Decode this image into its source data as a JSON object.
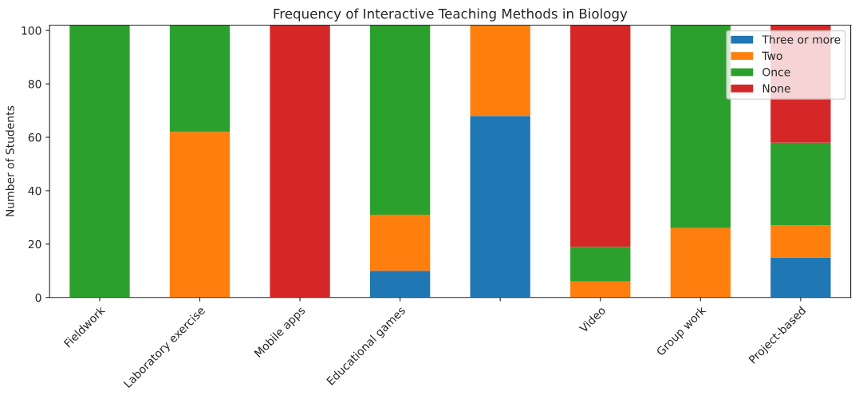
{
  "chart_data": {
    "type": "bar",
    "stacked": true,
    "title": "Frequency of Interactive Teaching Methods in Biology",
    "ylabel": "Number of Students",
    "categories": [
      "Fieldwork",
      "Laboratory exercise",
      "Mobile apps",
      "Educational games",
      null,
      "Video",
      "Group work",
      "Project-based"
    ],
    "series": [
      {
        "name": "Three or more",
        "color": "#1f77b4",
        "values": [
          0,
          0,
          0,
          10,
          68,
          0,
          0,
          15
        ]
      },
      {
        "name": "Two",
        "color": "#ff7f0e",
        "values": [
          0,
          62,
          0,
          21,
          34,
          6,
          26,
          12
        ]
      },
      {
        "name": "Once",
        "color": "#2ca02c",
        "values": [
          102,
          40,
          0,
          71,
          0,
          13,
          76,
          31
        ]
      },
      {
        "name": "None",
        "color": "#d62728",
        "values": [
          0,
          0,
          102,
          0,
          0,
          83,
          0,
          44
        ]
      }
    ],
    "ylim": [
      0,
      102
    ],
    "yticks": [
      0,
      20,
      40,
      60,
      80,
      100
    ],
    "legend": "top right",
    "grid": false
  }
}
